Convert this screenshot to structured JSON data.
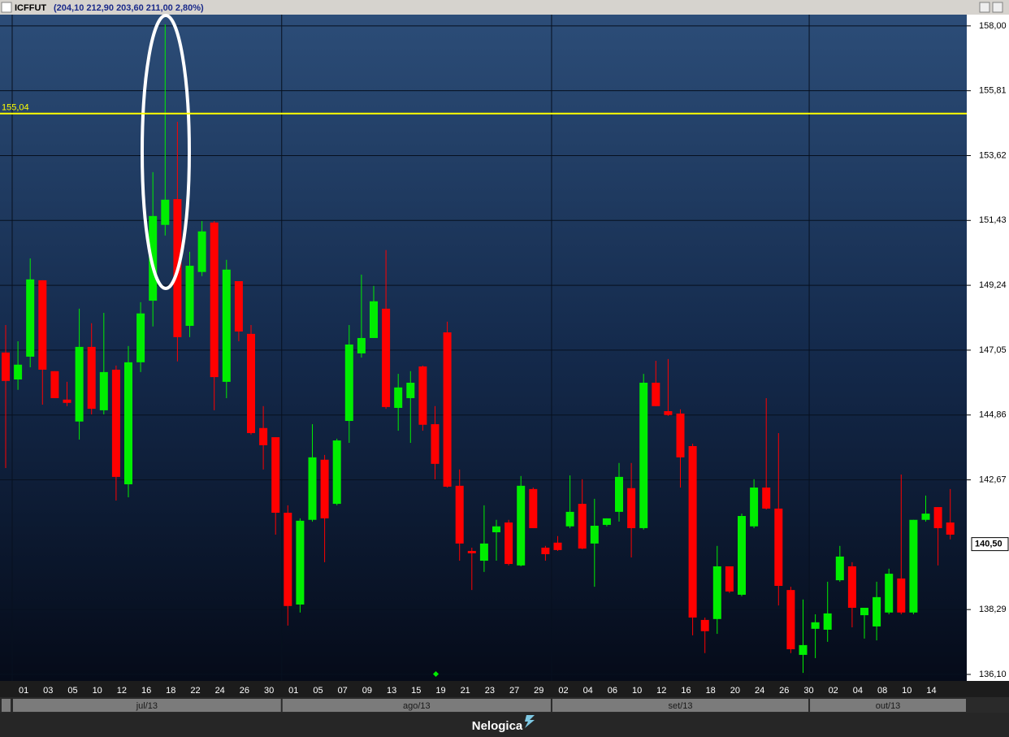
{
  "chart_data": {
    "type": "candlestick",
    "symbol": "ICFFUT",
    "quote": "(204,10  212,90  203,60  211,00  2,80%)",
    "brand": "Nelogica",
    "categories": [
      null,
      "01",
      null,
      "03",
      null,
      "05",
      null,
      "10",
      null,
      "12",
      null,
      "16",
      null,
      "18",
      null,
      "22",
      null,
      "24",
      null,
      "26",
      null,
      "30",
      null,
      "01",
      null,
      "05",
      null,
      "07",
      null,
      "09",
      null,
      "13",
      null,
      "15",
      null,
      "19",
      null,
      "21",
      null,
      "23",
      null,
      "27",
      null,
      "29",
      null,
      "02",
      null,
      "04",
      null,
      "06",
      null,
      "10",
      null,
      "12",
      null,
      "16",
      null,
      "18",
      null,
      "20",
      null,
      "24",
      null,
      "26",
      null,
      "30",
      null,
      "02",
      null,
      "04",
      null,
      "08",
      null,
      "10",
      null,
      "14",
      null,
      null
    ],
    "months": [
      "jul/13",
      "ago/13",
      "set/13",
      "out/13"
    ],
    "open": [
      146.97,
      146.06,
      146.83,
      149.41,
      146.34,
      145.38,
      144.64,
      147.16,
      145.02,
      146.39,
      142.52,
      146.64,
      148.72,
      151.28,
      152.15,
      147.87,
      149.69,
      151.36,
      145.98,
      149.38,
      147.6,
      144.42,
      144.11,
      141.56,
      138.46,
      141.32,
      143.35,
      141.86,
      144.66,
      146.94,
      147.46,
      148.45,
      145.1,
      145.43,
      146.5,
      144.55,
      147.65,
      142.47,
      140.27,
      139.94,
      140.9,
      141.23,
      139.78,
      142.36,
      140.38,
      140.55,
      141.1,
      141.86,
      140.52,
      141.15,
      141.59,
      142.39,
      141.04,
      145.95,
      144.99,
      144.91,
      143.81,
      137.94,
      137.97,
      139.75,
      138.79,
      141.1,
      142.41,
      141.7,
      138.95,
      136.76,
      137.64,
      137.61,
      139.28,
      139.75,
      138.1,
      137.72,
      138.19,
      139.34,
      138.19,
      141.32,
      141.75,
      141.23
    ],
    "high": [
      147.9,
      147.35,
      150.15,
      149.41,
      146.34,
      145.98,
      148.45,
      147.96,
      148.31,
      146.53,
      147.19,
      148.67,
      153.06,
      158.05,
      154.76,
      150.37,
      151.41,
      151.41,
      150.1,
      149.38,
      147.9,
      145.16,
      144.11,
      141.81,
      141.37,
      144.55,
      143.51,
      144.06,
      147.9,
      149.6,
      149.22,
      150.43,
      146.25,
      146.34,
      146.53,
      145.16,
      148.01,
      143.02,
      140.38,
      141.81,
      141.32,
      141.32,
      142.8,
      142.41,
      140.44,
      140.77,
      142.82,
      142.69,
      142.03,
      141.37,
      143.24,
      143.24,
      146.25,
      146.69,
      146.75,
      145.05,
      143.89,
      138.02,
      140.44,
      139.75,
      141.53,
      142.69,
      145.43,
      144.25,
      139.06,
      138.63,
      138.13,
      139.23,
      140.44,
      139.89,
      138.35,
      139.23,
      139.67,
      142.85,
      141.32,
      142.14,
      141.75,
      142.36
    ],
    "low": [
      143.07,
      145.71,
      146.47,
      145.21,
      145.43,
      145.16,
      144.03,
      144.88,
      144.88,
      141.97,
      142.08,
      146.31,
      147.85,
      150.92,
      146.67,
      147.49,
      149.55,
      145.02,
      145.43,
      147.35,
      144.2,
      143.02,
      140.82,
      137.75,
      138.19,
      141.26,
      139.89,
      141.81,
      143.92,
      146.8,
      147.46,
      145.07,
      144.33,
      143.92,
      144.33,
      142.69,
      142.41,
      139.94,
      138.95,
      139.56,
      139.94,
      139.78,
      139.75,
      141.04,
      139.94,
      140.27,
      141.04,
      140.33,
      139.06,
      141.1,
      141.26,
      140.05,
      140.99,
      145.16,
      144.83,
      142.41,
      137.42,
      136.82,
      137.47,
      138.85,
      138.74,
      141.04,
      141.67,
      138.43,
      136.82,
      136.15,
      136.65,
      137.2,
      139.23,
      137.69,
      137.31,
      137.25,
      138.13,
      138.13,
      138.13,
      141.26,
      139.78,
      140.66
    ],
    "close": [
      146.01,
      146.56,
      149.44,
      146.39,
      145.43,
      145.27,
      147.16,
      145.07,
      146.31,
      142.77,
      146.64,
      148.29,
      151.58,
      152.13,
      147.49,
      149.9,
      151.06,
      146.14,
      149.77,
      147.68,
      144.25,
      143.84,
      141.56,
      138.41,
      141.29,
      143.43,
      141.37,
      144.0,
      147.24,
      147.46,
      148.7,
      145.13,
      145.79,
      145.95,
      144.53,
      143.21,
      142.44,
      140.52,
      140.19,
      140.52,
      141.1,
      139.83,
      142.47,
      141.04,
      140.16,
      140.3,
      141.59,
      140.35,
      141.12,
      141.37,
      142.77,
      141.04,
      145.95,
      145.16,
      144.86,
      143.43,
      138.02,
      137.56,
      139.75,
      138.9,
      141.45,
      142.41,
      141.7,
      139.09,
      136.95,
      137.09,
      137.86,
      138.16,
      140.08,
      138.35,
      138.35,
      138.71,
      139.5,
      138.19,
      141.32,
      141.53,
      141.04,
      140.82
    ],
    "up_color": "#00ee00",
    "down_color": "#ff0000",
    "ylim": [
      135.88,
      158.38
    ],
    "yticks": [
      {
        "value": 158.0,
        "label": "158,00"
      },
      {
        "value": 155.81,
        "label": "155,81"
      },
      {
        "value": 153.62,
        "label": "153,62"
      },
      {
        "value": 151.43,
        "label": "151,43"
      },
      {
        "value": 149.24,
        "label": "149,24"
      },
      {
        "value": 147.05,
        "label": "147,05"
      },
      {
        "value": 144.86,
        "label": "144,86"
      },
      {
        "value": 142.67,
        "label": "142,67"
      },
      {
        "value": 138.29,
        "label": "138,29"
      },
      {
        "value": 136.1,
        "label": "136,10"
      }
    ],
    "grid": true,
    "hline": {
      "value": 155.04,
      "label": "155,04",
      "color": "#ffff00"
    },
    "last_price": {
      "value": 140.5,
      "label": "140,50"
    }
  }
}
